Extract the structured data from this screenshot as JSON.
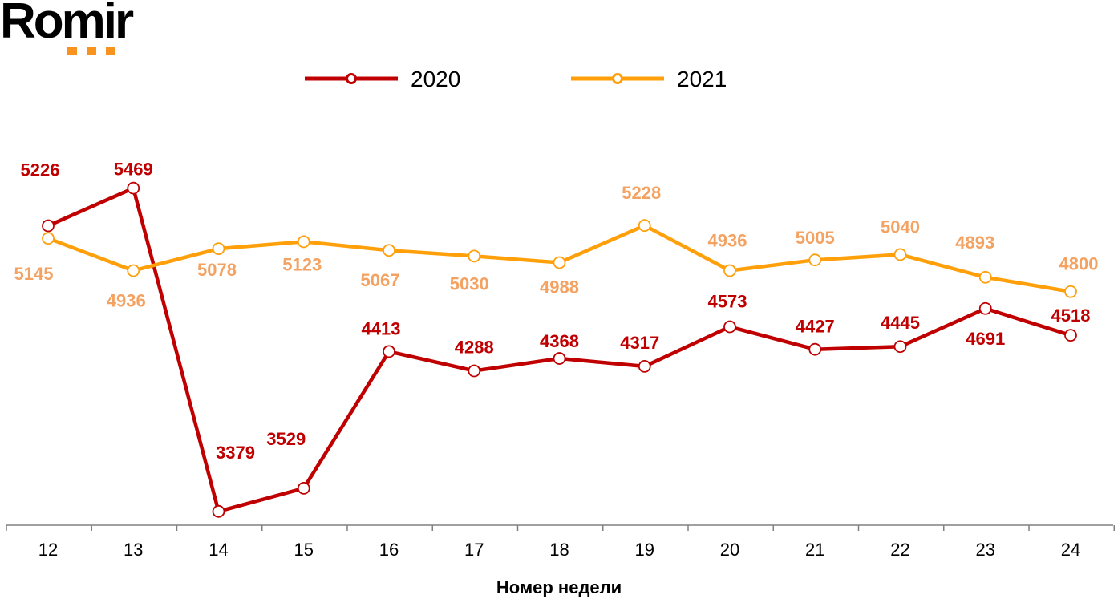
{
  "logo": {
    "text": "Romir",
    "accent_color": "#F7931E"
  },
  "chart_data": {
    "type": "line",
    "title": "",
    "xlabel": "Номер недели",
    "ylabel": "",
    "categories": [
      "12",
      "13",
      "14",
      "15",
      "16",
      "17",
      "18",
      "19",
      "20",
      "21",
      "22",
      "23",
      "24"
    ],
    "ylim": [
      3290,
      5960
    ],
    "grid": false,
    "legend_position": "top",
    "series": [
      {
        "name": "2020",
        "color": "#C00000",
        "label_color": "#C00000",
        "values": [
          5226,
          5469,
          3379,
          3529,
          4413,
          4288,
          4368,
          4317,
          4573,
          4427,
          4445,
          4691,
          4518
        ]
      },
      {
        "name": "2021",
        "color": "#FFA00A",
        "label_color": "#F4A262",
        "values": [
          5145,
          4936,
          5078,
          5123,
          5067,
          5030,
          4988,
          5228,
          4936,
          5005,
          5040,
          4893,
          4800
        ]
      }
    ]
  }
}
